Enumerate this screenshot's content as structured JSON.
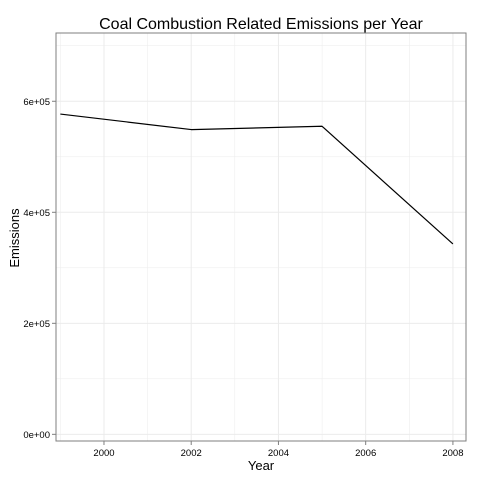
{
  "chart_data": {
    "type": "line",
    "title": "Coal Combustion Related Emissions per Year",
    "xlabel": "Year",
    "ylabel": "Emissions",
    "x": [
      1999,
      2002,
      2005,
      2008
    ],
    "series": [
      {
        "values": [
          577000,
          549000,
          555000,
          343000
        ],
        "color": "#000000"
      }
    ],
    "xlim": [
      1998.9,
      2008.3
    ],
    "ylim": [
      -12000,
      723000
    ],
    "x_ticks": [
      2000,
      2002,
      2004,
      2006,
      2008
    ],
    "x_tick_labels": [
      "2000",
      "2002",
      "2004",
      "2006",
      "2008"
    ],
    "y_ticks": [
      0,
      200000,
      400000,
      600000
    ],
    "y_tick_labels": [
      "0e+00",
      "2e+05",
      "4e+05",
      "6e+05"
    ],
    "grid": true,
    "grid_color": "#ebebeb",
    "border_color": "#7f7f7f"
  }
}
